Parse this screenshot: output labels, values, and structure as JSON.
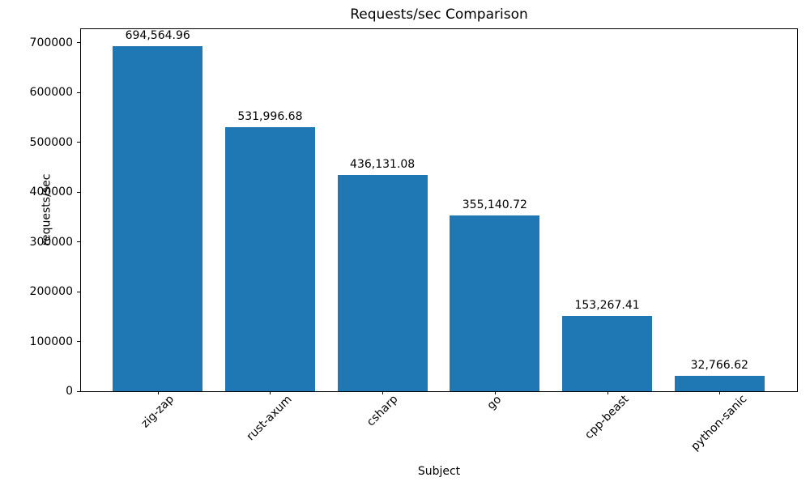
{
  "chart_data": {
    "type": "bar",
    "title": "Requests/sec Comparison",
    "xlabel": "Subject",
    "ylabel": "requests/sec",
    "categories": [
      "zig-zap",
      "rust-axum",
      "csharp",
      "go",
      "cpp-beast",
      "python-sanic"
    ],
    "values": [
      694564.96,
      531996.68,
      436131.08,
      355140.72,
      153267.41,
      32766.62
    ],
    "bar_labels": [
      "694,564.96",
      "531,996.68",
      "436,131.08",
      "355,140.72",
      "153,267.41",
      "32,766.62"
    ],
    "yticks": [
      0,
      100000,
      200000,
      300000,
      400000,
      500000,
      600000,
      700000
    ],
    "ylim": [
      0,
      729300
    ],
    "bar_color": "#1f77b4",
    "text_color": "#000000",
    "grid": false,
    "legend_position": "none"
  }
}
